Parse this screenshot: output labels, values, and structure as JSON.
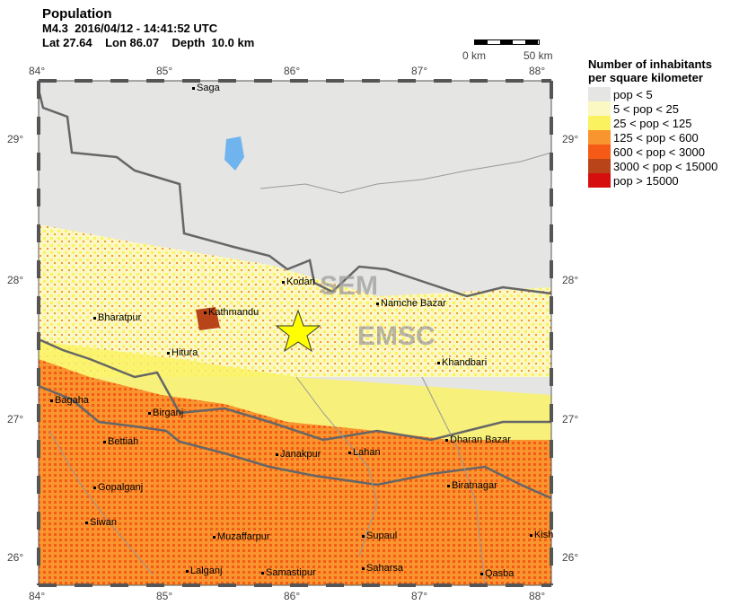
{
  "header": {
    "title": "Population",
    "event": "M4.3  2016/04/12 - 14:41:52 UTC",
    "location": "Lat 27.64    Lon 86.07    Depth  10.0 km"
  },
  "scale": {
    "left": "0 km",
    "right": "50 km"
  },
  "axes": {
    "lon_ticks": [
      "84°",
      "85°",
      "86°",
      "87°",
      "88°"
    ],
    "lat_ticks": [
      "29°",
      "28°",
      "27°",
      "26°"
    ]
  },
  "legend": {
    "title_line1": "Number of inhabitants",
    "title_line2": "per square kilometer",
    "items": [
      {
        "label": "pop < 5",
        "color": "#e5e5e3"
      },
      {
        "label": "5 < pop < 25",
        "color": "#fbf8c4"
      },
      {
        "label": "25 < pop < 125",
        "color": "#fbf25f"
      },
      {
        "label": "125 < pop < 600",
        "color": "#f8952f"
      },
      {
        "label": "600 < pop < 3000",
        "color": "#f55a16"
      },
      {
        "label": "3000 < pop < 15000",
        "color": "#b9441a"
      },
      {
        "label": "pop > 15000",
        "color": "#d60f0e"
      }
    ]
  },
  "cities": [
    {
      "name": "Saga"
    },
    {
      "name": "Kodari"
    },
    {
      "name": "Namche Bazar"
    },
    {
      "name": "Bharatpur"
    },
    {
      "name": "Kathmandu"
    },
    {
      "name": "Hitura"
    },
    {
      "name": "Khandbari"
    },
    {
      "name": "Bagaha"
    },
    {
      "name": "Birganj"
    },
    {
      "name": "Dharan Bazar"
    },
    {
      "name": "Bettiah"
    },
    {
      "name": "Janakpur"
    },
    {
      "name": "Lahan"
    },
    {
      "name": "Gopalganj"
    },
    {
      "name": "Biratnagar"
    },
    {
      "name": "Siwan"
    },
    {
      "name": "Muzaffarpur"
    },
    {
      "name": "Supaul"
    },
    {
      "name": "Kish"
    },
    {
      "name": "Lalganj"
    },
    {
      "name": "Samastipur"
    },
    {
      "name": "Saharsa"
    },
    {
      "name": "Qasba"
    }
  ],
  "epicenter_icon": "star-icon",
  "watermark": "CSEM EMSC"
}
